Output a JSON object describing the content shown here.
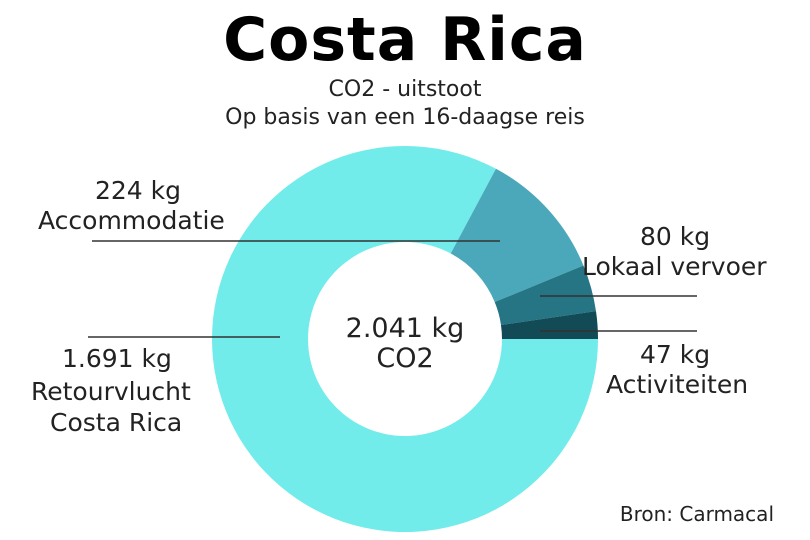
{
  "header": {
    "title": "Costa Rica",
    "subtitle_line1": "CO2 - uitstoot",
    "subtitle_line2": "Op basis van een 16-daagse reis"
  },
  "center": {
    "value": "2.041 kg",
    "unit": "CO2"
  },
  "labels": {
    "accommodatie_value": "224 kg",
    "accommodatie_name": "Accommodatie",
    "lokaal_value": "80 kg",
    "lokaal_name": "Lokaal vervoer",
    "activiteiten_value": "47 kg",
    "activiteiten_name": "Activiteiten",
    "retourvlucht_value": "1.691 kg",
    "retourvlucht_name1": "Retourvlucht",
    "retourvlucht_name2": "Costa Rica"
  },
  "source": "Bron: Carmacal",
  "chart_data": {
    "type": "pie",
    "variant": "donut",
    "title": "Costa Rica",
    "subtitle": "CO2 - uitstoot / Op basis van een 16-daagse reis",
    "unit": "kg",
    "total": 2041,
    "categories": [
      "Retourvlucht Costa Rica",
      "Accommodatie",
      "Lokaal vervoer",
      "Activiteiten"
    ],
    "values": [
      1691,
      224,
      80,
      47
    ],
    "colors": [
      "#72EBEB",
      "#4AA8BA",
      "#257584",
      "#124A55"
    ]
  }
}
